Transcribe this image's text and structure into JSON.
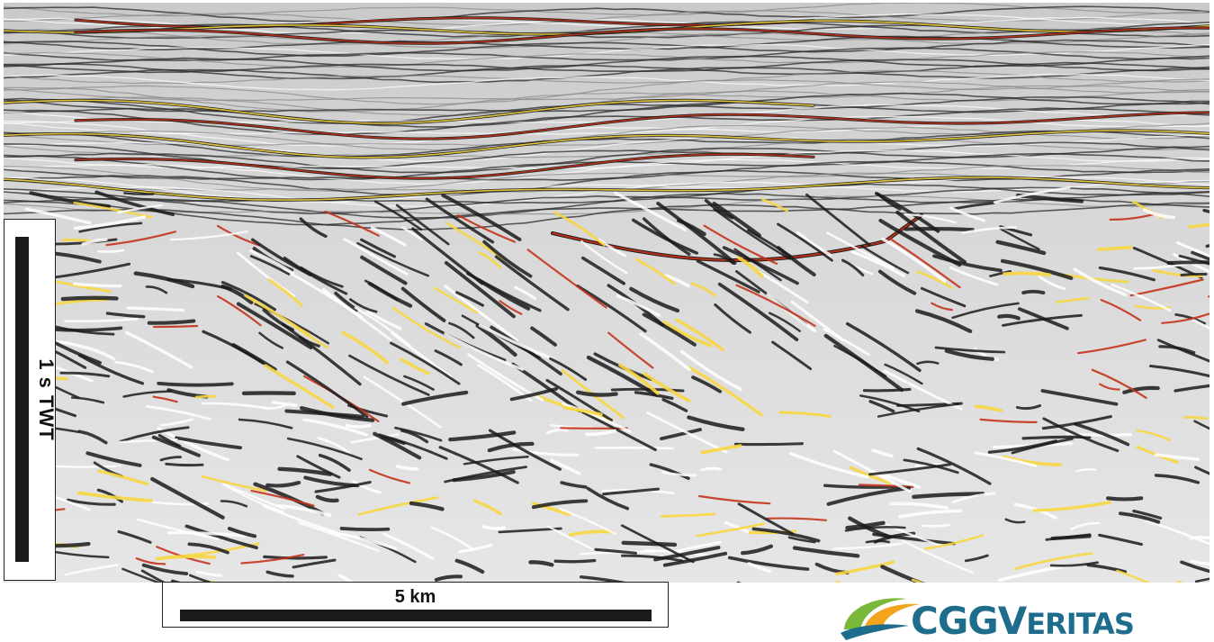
{
  "image": {
    "description_free": true
  },
  "scale_bars": {
    "vertical_label": "1 s TWT",
    "horizontal_label": "5 km"
  },
  "logo": {
    "text_part1": "CGG",
    "text_part2_cap": "V",
    "text_part2_rest": "ERITAS"
  },
  "colors": {
    "logo_blue": "#1f6d8c",
    "logo_green": "#7ab83a",
    "logo_orange": "#f2a51c",
    "reflector_red": "#c4331c",
    "reflector_yellow": "#f7d640"
  }
}
